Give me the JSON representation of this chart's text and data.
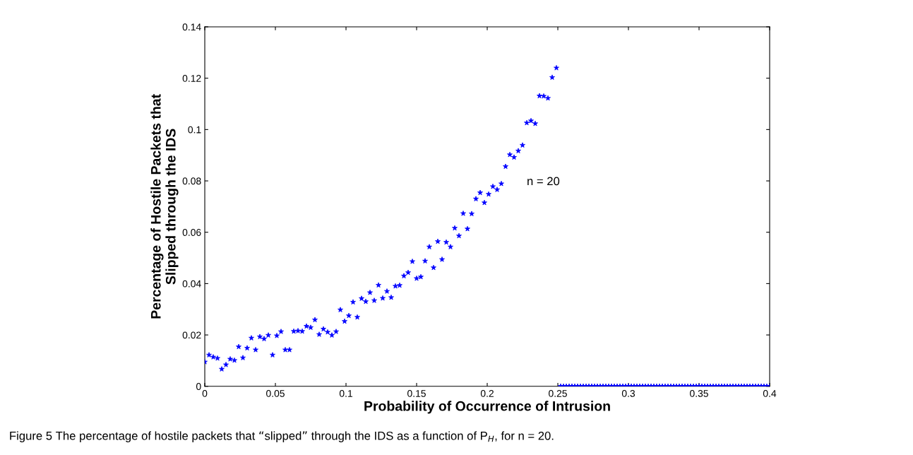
{
  "chart_data": {
    "type": "scatter",
    "xlabel": "Probability of Occurrence of Intrusion",
    "ylabel": "Percentage of Hostile Packets that\nSlipped through the IDS",
    "xlim": [
      0,
      0.4
    ],
    "ylim": [
      0,
      0.14
    ],
    "xticks": [
      0,
      0.05,
      0.1,
      0.15,
      0.2,
      0.25,
      0.3,
      0.35,
      0.4
    ],
    "yticks": [
      0,
      0.02,
      0.04,
      0.06,
      0.08,
      0.1,
      0.12,
      0.14
    ],
    "grid": false,
    "marker": "star",
    "series": [
      {
        "color": "#0000ff",
        "x": [
          0,
          0.003,
          0.006,
          0.009,
          0.012,
          0.015,
          0.018,
          0.021,
          0.024,
          0.027,
          0.03,
          0.033,
          0.036,
          0.039,
          0.042,
          0.045,
          0.048,
          0.051,
          0.054,
          0.057,
          0.06,
          0.063,
          0.066,
          0.069,
          0.072,
          0.075,
          0.078,
          0.081,
          0.084,
          0.087,
          0.09,
          0.093,
          0.096,
          0.099,
          0.102,
          0.105,
          0.108,
          0.111,
          0.114,
          0.117,
          0.12,
          0.123,
          0.126,
          0.129,
          0.132,
          0.135,
          0.138,
          0.141,
          0.144,
          0.147,
          0.15,
          0.153,
          0.156,
          0.159,
          0.162,
          0.165,
          0.168,
          0.171,
          0.174,
          0.177,
          0.18,
          0.183,
          0.186,
          0.189,
          0.192,
          0.195,
          0.198,
          0.201,
          0.204,
          0.207,
          0.21,
          0.213,
          0.216,
          0.219,
          0.222,
          0.225,
          0.228,
          0.231,
          0.234,
          0.237,
          0.24,
          0.243,
          0.246,
          0.249
        ],
        "values": [
          0.0095,
          0.0122,
          0.0114,
          0.0109,
          0.0067,
          0.0084,
          0.0106,
          0.0101,
          0.0154,
          0.0111,
          0.0149,
          0.0188,
          0.0142,
          0.0193,
          0.0185,
          0.0199,
          0.0122,
          0.0197,
          0.0213,
          0.0142,
          0.0142,
          0.0214,
          0.0216,
          0.0214,
          0.0234,
          0.0229,
          0.0259,
          0.0202,
          0.0223,
          0.0211,
          0.0199,
          0.0213,
          0.0298,
          0.0253,
          0.0275,
          0.0328,
          0.0269,
          0.0342,
          0.033,
          0.0365,
          0.0334,
          0.0394,
          0.0343,
          0.037,
          0.0346,
          0.039,
          0.0393,
          0.043,
          0.0443,
          0.0486,
          0.042,
          0.0426,
          0.0488,
          0.0543,
          0.0462,
          0.0564,
          0.0494,
          0.0561,
          0.0543,
          0.0616,
          0.0586,
          0.0673,
          0.0613,
          0.0672,
          0.073,
          0.0754,
          0.0715,
          0.0748,
          0.0778,
          0.0766,
          0.0789,
          0.0856,
          0.0902,
          0.0892,
          0.0917,
          0.0939,
          0.1026,
          0.1034,
          0.1023,
          0.1131,
          0.113,
          0.1122,
          0.1203,
          0.124
        ]
      },
      {
        "color": "#0000ff",
        "x": [
          0.252,
          0.254,
          0.256,
          0.258,
          0.26,
          0.262,
          0.264,
          0.266,
          0.268,
          0.27,
          0.272,
          0.274,
          0.276,
          0.278,
          0.28,
          0.282,
          0.284,
          0.286,
          0.288,
          0.29,
          0.292,
          0.294,
          0.296,
          0.298,
          0.3,
          0.302,
          0.304,
          0.306,
          0.308,
          0.31,
          0.312,
          0.314,
          0.316,
          0.318,
          0.32,
          0.322,
          0.324,
          0.326,
          0.328,
          0.33,
          0.332,
          0.334,
          0.336,
          0.338,
          0.34,
          0.342,
          0.344,
          0.346,
          0.348,
          0.35,
          0.352,
          0.354,
          0.356,
          0.358,
          0.36,
          0.362,
          0.364,
          0.366,
          0.368,
          0.37,
          0.372,
          0.374,
          0.376,
          0.378,
          0.38,
          0.382,
          0.384,
          0.386,
          0.388,
          0.39,
          0.392,
          0.394,
          0.396,
          0.398,
          0.4
        ],
        "values": [
          0,
          0,
          0,
          0,
          0,
          0,
          0,
          0,
          0,
          0,
          0,
          0,
          0,
          0,
          0,
          0,
          0,
          0,
          0,
          0,
          0,
          0,
          0,
          0,
          0,
          0,
          0,
          0,
          0,
          0,
          0,
          0,
          0,
          0,
          0,
          0,
          0,
          0,
          0,
          0,
          0,
          0,
          0,
          0,
          0,
          0,
          0,
          0,
          0,
          0,
          0,
          0,
          0,
          0,
          0,
          0,
          0,
          0,
          0,
          0,
          0,
          0,
          0,
          0,
          0,
          0,
          0,
          0,
          0,
          0,
          0,
          0,
          0,
          0,
          0
        ]
      }
    ],
    "annotations": [
      "n = 20",
      "Figure 5 The percentage of hostile packets that “slipped” through the IDS as a function of P$_{H}$, for n = 20."
    ]
  }
}
